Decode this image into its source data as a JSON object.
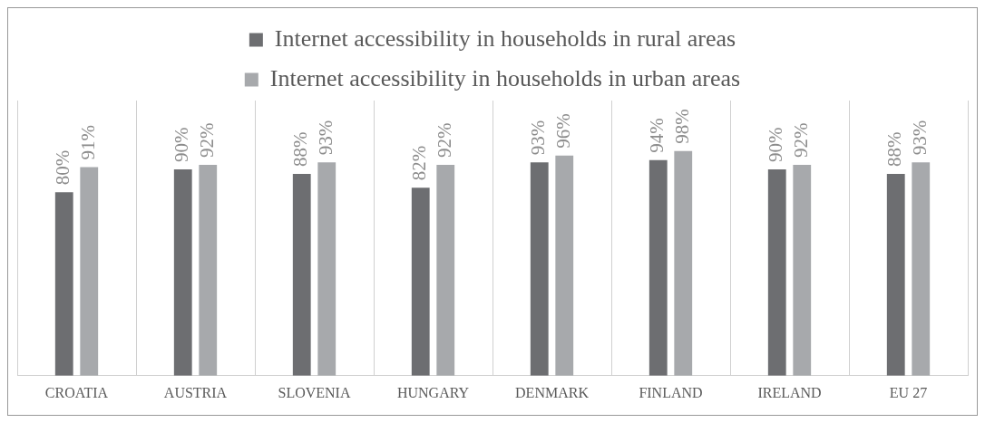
{
  "chart_data": {
    "type": "bar",
    "categories": [
      "CROATIA",
      "AUSTRIA",
      "SLOVENIA",
      "HUNGARY",
      "DENMARK",
      "FINLAND",
      "IRELAND",
      "EU 27"
    ],
    "series": [
      {
        "name": "Internet accessibility in households in rural areas",
        "color": "#6d6e71",
        "values": [
          80,
          90,
          88,
          82,
          93,
          94,
          90,
          88
        ],
        "value_labels": [
          "80%",
          "90%",
          "88%",
          "82%",
          "93%",
          "94%",
          "90%",
          "88%"
        ]
      },
      {
        "name": "Internet accessibility in households in urban areas",
        "color": "#a7a9ac",
        "values": [
          91,
          92,
          93,
          92,
          96,
          98,
          92,
          93
        ],
        "value_labels": [
          "91%",
          "92%",
          "93%",
          "92%",
          "96%",
          "98%",
          "92%",
          "93%"
        ]
      }
    ],
    "tick_labels": "x",
    "grid": "x",
    "legend": "top"
  }
}
